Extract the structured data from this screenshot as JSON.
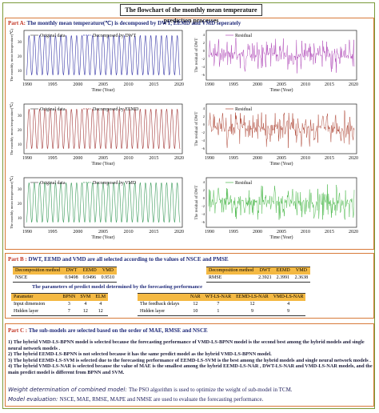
{
  "title": "The flowchart of the monthly mean temperature prediction processes",
  "partA": {
    "label": "Part A:",
    "text": "The monthly mean temperature(℃) is decomposed by DWT, EEMD and VMD seperately",
    "rows": [
      {
        "decomp_legend": [
          "Original data",
          "Decomposed by DWT"
        ],
        "residual_legend": "Residual",
        "left_ylabel": "The monthly mean temperature(℃)",
        "right_ylabel": "The residual of DWT",
        "color": "#3a3aa8",
        "res_color": "#b04ab8"
      },
      {
        "decomp_legend": [
          "Original data",
          "Decomposed by EEMD"
        ],
        "residual_legend": "Residual",
        "left_ylabel": "The monthly mean temperature(℃)",
        "right_ylabel": "The residual of DWT",
        "color": "#a33a3a",
        "res_color": "#b04a3a"
      },
      {
        "decomp_legend": [
          "Original data",
          "Decomposed by VMD"
        ],
        "residual_legend": "Residual",
        "left_ylabel": "The monthly mean temperature(℃)",
        "right_ylabel": "The residual of DWT",
        "color": "#3a9a5a",
        "res_color": "#4ab84a"
      }
    ],
    "xlabel": "Time (Year)",
    "xticks": [
      "1990",
      "1995",
      "2000",
      "2005",
      "2010",
      "2015",
      "2020"
    ],
    "left_yticks": [
      "10",
      "20",
      "30"
    ],
    "right_yticks": [
      "4",
      "2",
      "0",
      "-2",
      "-4",
      "-6"
    ]
  },
  "partB": {
    "label": "Part B :",
    "text": "DWT, EEMD and VMD are all selected according to the values of NSCE and PMSE",
    "nsce_table": {
      "headers": [
        "Decomposition method",
        "DWT",
        "EEMD",
        "VMD"
      ],
      "row": [
        "NSCE",
        "0.9498",
        "0.9496",
        "0.9510"
      ]
    },
    "rmse_table": {
      "headers": [
        "Decomposition method",
        "DWT",
        "EEMD",
        "VMD"
      ],
      "row": [
        "RMSE",
        "2.3921",
        "2.3991",
        "2.3638"
      ]
    },
    "params_title": "The parameters of predict model determined by the forecasting performance",
    "params_left": {
      "headers": [
        "Parameter",
        "BPNN",
        "SVM",
        "ELM"
      ],
      "rows": [
        [
          "Input dimension",
          "3",
          "4",
          "4"
        ],
        [
          "Hidden layer",
          "7",
          "12",
          "12"
        ]
      ]
    },
    "params_right": {
      "headers": [
        "NAR",
        "WT-LS-NAR",
        "EEMD-LS-NAR",
        "VMD-LS-NAR"
      ],
      "rows": [
        [
          "The feedback delays",
          "12",
          "7",
          "12",
          "4"
        ],
        [
          "Hidden layer",
          "10",
          "1",
          "9",
          "9"
        ]
      ]
    }
  },
  "partC": {
    "label": "Part C :",
    "text": "The sub-models are selected based on the order of MAE, RMSE and NSCE",
    "items": [
      "1) The hybrid VMD-LS-BPNN model is selected because the forecasting performance of VMD-LS-BPNN model is the second best among the hybrid models and single neural network models .",
      "2) The hybrid EEMD-LS-BPNN is not selected because it has the same predict model as the hybrid VMD-LS-BPNN model.",
      "3) The hybrid EEMD-LS-SVM is selected due to the forecasting performance of EEMD-LS-SVM is the best among the hybrid models and single neural network models .",
      "4) The hybrid VMD-LS-NAR is selected because the value of MAE is the smallest among the hybrid EEMD-LS-NAR , DWT-LS-NAR and VMD-LS-NAR models, and the main predict model is different from BPNN and SVM."
    ],
    "weight_label": "Weight determination of combined model:",
    "weight_text": "The PSO algorithm is used to optimize the weight of sub-model in TCM.",
    "eval_label": "Model evaluation:",
    "eval_text": "NSCE, MAE, RMSE, MAPE and NMSE are used to evaluate the forecasting performance."
  }
}
